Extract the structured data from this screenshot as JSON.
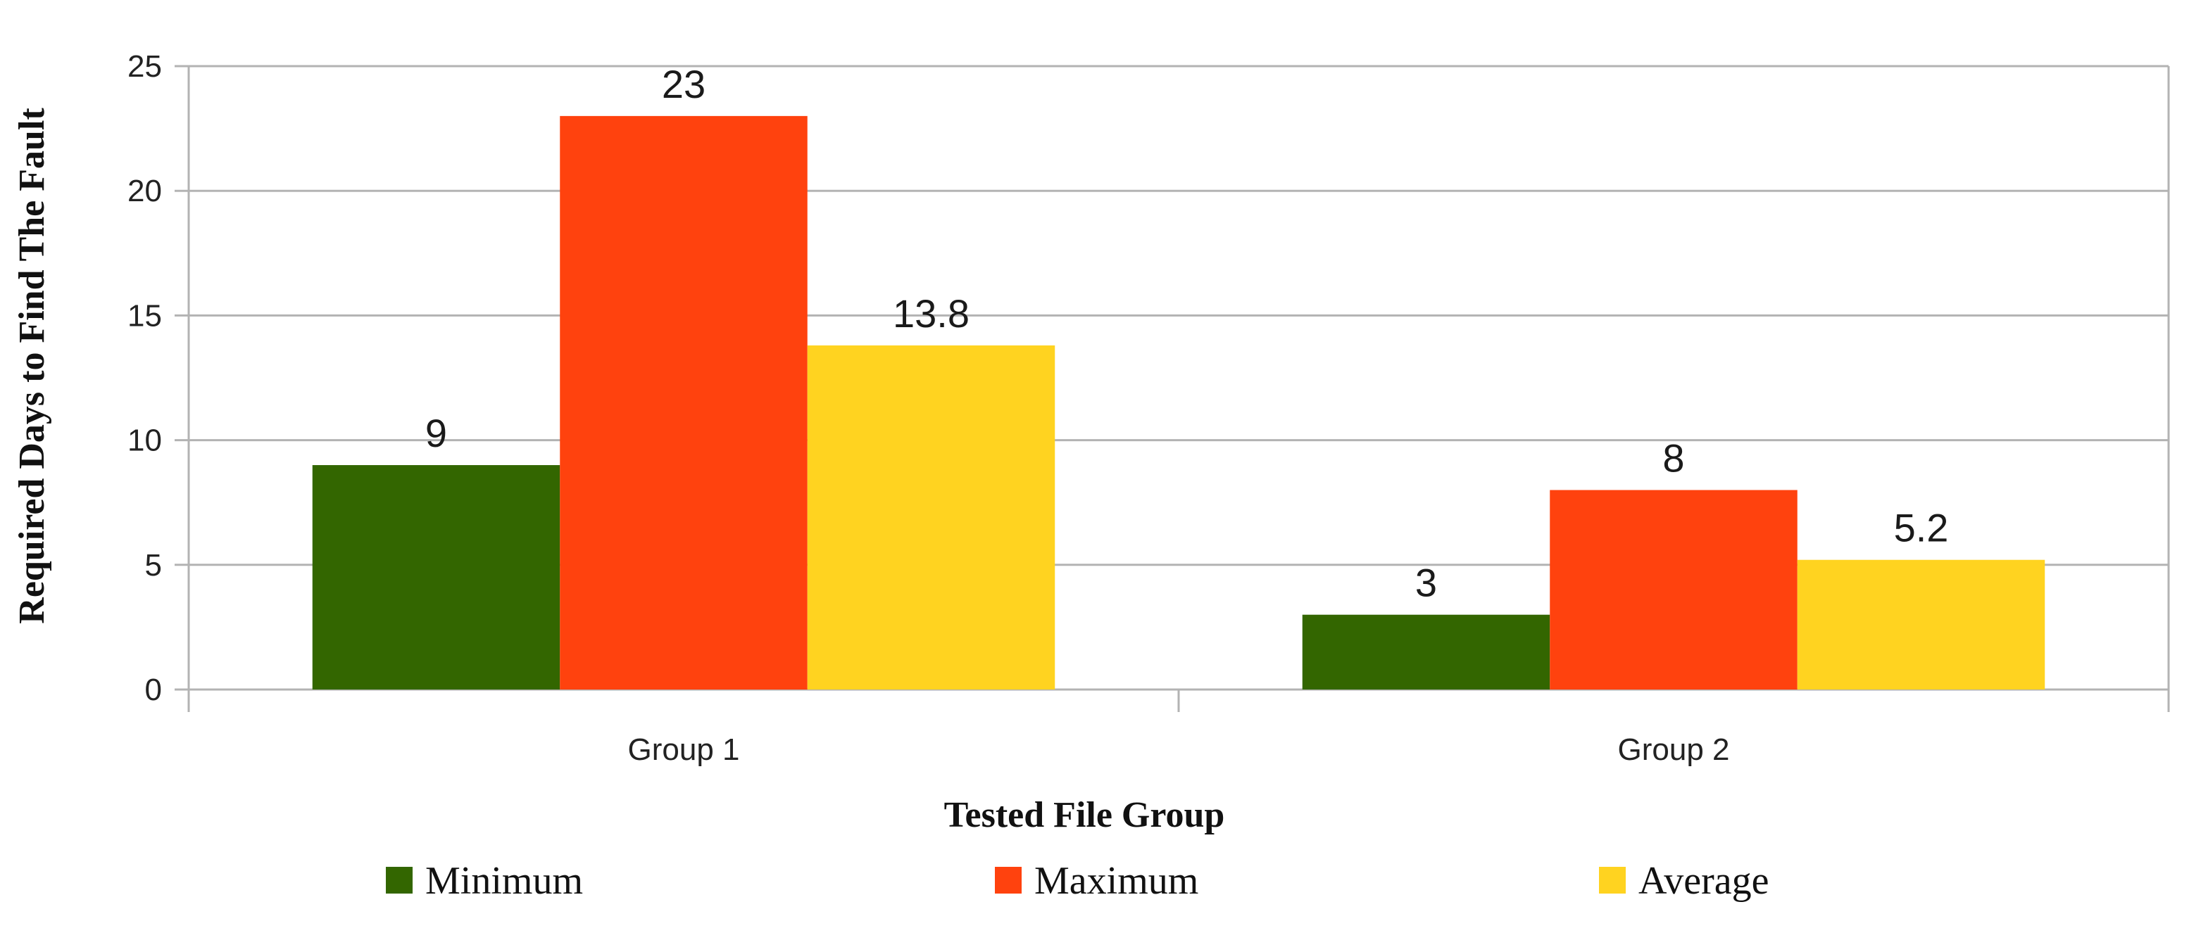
{
  "chart_data": {
    "type": "bar",
    "title": "",
    "xlabel": "Tested File Group",
    "ylabel": "Required Days to Find The Fault",
    "categories": [
      "Group 1",
      "Group 2"
    ],
    "series": [
      {
        "name": "Minimum",
        "values": [
          9,
          3
        ],
        "color": "#336600"
      },
      {
        "name": "Maximum",
        "values": [
          23,
          8
        ],
        "color": "#ff420e"
      },
      {
        "name": "Average",
        "values": [
          13.8,
          5.2
        ],
        "color": "#ffd320"
      }
    ],
    "ylim": [
      0,
      25
    ],
    "yticks": [
      0,
      5,
      10,
      15,
      20,
      25
    ],
    "grid": true,
    "legend_position": "bottom"
  }
}
